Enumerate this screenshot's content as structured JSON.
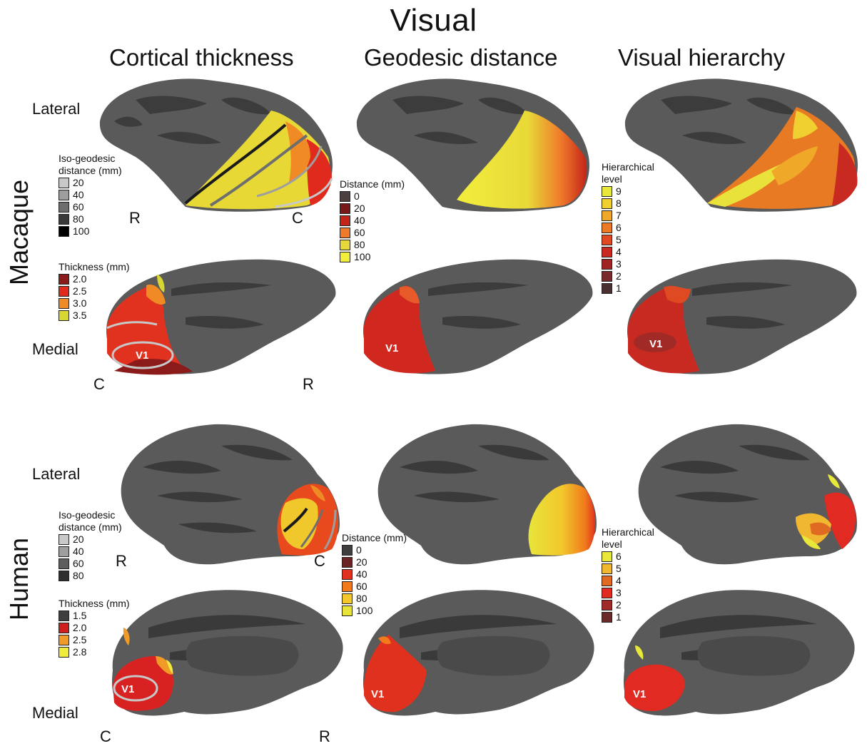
{
  "title": "Visual",
  "columns": [
    "Cortical thickness",
    "Geodesic distance",
    "Visual hierarchy"
  ],
  "rows": [
    "Macaque",
    "Human"
  ],
  "views": {
    "lateral": "Lateral",
    "medial": "Medial"
  },
  "orientation": {
    "rostral": "R",
    "caudal": "C"
  },
  "v1_label": "V1",
  "macaque": {
    "iso_legend": {
      "title_line1": "Iso-geodesic",
      "title_line2": "distance (mm)",
      "entries": [
        {
          "label": "20",
          "color": "#c8c8c8"
        },
        {
          "label": "40",
          "color": "#9e9e9e"
        },
        {
          "label": "60",
          "color": "#6e6e6e"
        },
        {
          "label": "80",
          "color": "#3a3a3a"
        },
        {
          "label": "100",
          "color": "#000000"
        }
      ]
    },
    "thickness_legend": {
      "title": "Thickness (mm)",
      "entries": [
        {
          "label": "2.0",
          "color": "#8b1a1a"
        },
        {
          "label": "2.5",
          "color": "#e02a1e"
        },
        {
          "label": "3.0",
          "color": "#f08a24"
        },
        {
          "label": "3.5",
          "color": "#d8d630"
        }
      ]
    },
    "distance_legend": {
      "title": "Distance (mm)",
      "entries": [
        {
          "label": "0",
          "color": "#4a4040"
        },
        {
          "label": "20",
          "color": "#7a1818"
        },
        {
          "label": "40",
          "color": "#c42418"
        },
        {
          "label": "60",
          "color": "#ef7a2a"
        },
        {
          "label": "80",
          "color": "#e6d838"
        },
        {
          "label": "100",
          "color": "#f2ee3c"
        }
      ]
    },
    "hierarchy_legend": {
      "title_line1": "Hierarchical",
      "title_line2": "level",
      "entries": [
        {
          "label": "9",
          "color": "#e8e83a"
        },
        {
          "label": "8",
          "color": "#f0d030"
        },
        {
          "label": "7",
          "color": "#f0a828"
        },
        {
          "label": "6",
          "color": "#ec7a24"
        },
        {
          "label": "5",
          "color": "#e04a22"
        },
        {
          "label": "4",
          "color": "#c82a22"
        },
        {
          "label": "3",
          "color": "#a02424"
        },
        {
          "label": "2",
          "color": "#7a2a2a"
        },
        {
          "label": "1",
          "color": "#4a3030"
        }
      ]
    }
  },
  "human": {
    "iso_legend": {
      "title_line1": "Iso-geodesic",
      "title_line2": "distance (mm)",
      "entries": [
        {
          "label": "20",
          "color": "#c8c8c8"
        },
        {
          "label": "40",
          "color": "#9e9e9e"
        },
        {
          "label": "60",
          "color": "#5e5e5e"
        },
        {
          "label": "80",
          "color": "#2e2e2e"
        }
      ]
    },
    "thickness_legend": {
      "title": "Thickness (mm)",
      "entries": [
        {
          "label": "1.5",
          "color": "#3e3e3e"
        },
        {
          "label": "2.0",
          "color": "#d01e1e"
        },
        {
          "label": "2.5",
          "color": "#f09a28"
        },
        {
          "label": "2.8",
          "color": "#f0ec3c"
        }
      ]
    },
    "distance_legend": {
      "title": "Distance (mm)",
      "entries": [
        {
          "label": "0",
          "color": "#3e3e3e"
        },
        {
          "label": "20",
          "color": "#6a2424"
        },
        {
          "label": "40",
          "color": "#e0301e"
        },
        {
          "label": "60",
          "color": "#f07a1c"
        },
        {
          "label": "80",
          "color": "#f2c82c"
        },
        {
          "label": "100",
          "color": "#e8e43a"
        }
      ]
    },
    "hierarchy_legend": {
      "title_line1": "Hierarchical",
      "title_line2": "level",
      "entries": [
        {
          "label": "6",
          "color": "#e8e83a"
        },
        {
          "label": "5",
          "color": "#f0b830"
        },
        {
          "label": "4",
          "color": "#e06a22"
        },
        {
          "label": "3",
          "color": "#e02a22"
        },
        {
          "label": "2",
          "color": "#a02a2a"
        },
        {
          "label": "1",
          "color": "#6a2a2a"
        }
      ]
    }
  }
}
